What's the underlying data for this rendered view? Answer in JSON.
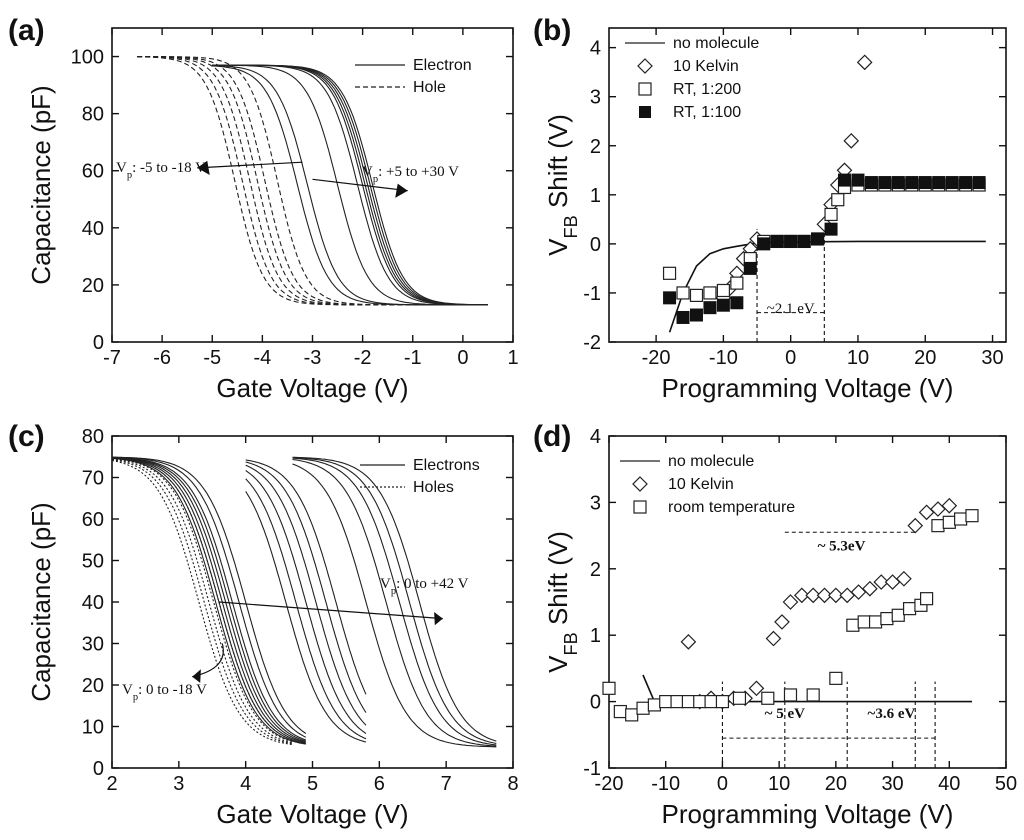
{
  "chart_data": [
    {
      "panel": "(a)",
      "type": "line",
      "xlabel": "Gate Voltage (V)",
      "ylabel": "Capacitance (pF)",
      "xlim": [
        -7,
        1
      ],
      "ylim": [
        0,
        110
      ],
      "xticks": [
        "-7",
        "-6",
        "-5",
        "-4",
        "-3",
        "-2",
        "-1",
        "0",
        "1"
      ],
      "yticks": [
        "0",
        "20",
        "40",
        "60",
        "80",
        "100"
      ],
      "legend": [
        {
          "label": "Electron",
          "style": "solid"
        },
        {
          "label": "Hole",
          "style": "dashed"
        }
      ],
      "annotations": {
        "left": {
          "pre": "V",
          "sub": "p",
          "post": ": -5 to -18 V"
        },
        "right": {
          "pre": "V",
          "sub": "p",
          "post": ": +5 to +30 V"
        }
      },
      "curve_model": {
        "form": "logistic",
        "low": 13,
        "high": 97,
        "end": 0.5
      },
      "series": [
        {
          "name": "Hole",
          "style": "dashed",
          "start": -6.5,
          "high": 100,
          "width": 0.28,
          "midpoints": [
            -4.55,
            -4.4,
            -4.25,
            -4.1,
            -3.95,
            -3.7
          ]
        },
        {
          "name": "Electron",
          "style": "solid",
          "start": -5.0,
          "high": 97,
          "width": 0.3,
          "midpoints": [
            -3.3,
            -3.1,
            -2.5,
            -2.1,
            -2.0,
            -1.95,
            -1.9,
            -1.85,
            -1.8
          ]
        }
      ]
    },
    {
      "panel": "(b)",
      "type": "scatter",
      "xlabel": "Programming Voltage (V)",
      "ylabel_main": "V",
      "ylabel_sub": "FB",
      "ylabel_rest": " Shift (V)",
      "xlim": [
        -27,
        32
      ],
      "ylim": [
        -2,
        4.4
      ],
      "xticks": [
        "-20",
        "-10",
        "0",
        "10",
        "20",
        "30"
      ],
      "yticks": [
        "-2",
        "-1",
        "0",
        "1",
        "2",
        "3",
        "4"
      ],
      "legend": [
        {
          "label": "no molecule",
          "marker": "line"
        },
        {
          "label": "10 Kelvin",
          "marker": "diamond-open"
        },
        {
          "label": "RT, 1:200",
          "marker": "square-open"
        },
        {
          "label": "RT, 1:100",
          "marker": "square-filled"
        }
      ],
      "annotation": "~2.1 eV",
      "markers_x": [
        -5,
        5
      ],
      "no_molecule": [
        [
          -18,
          -1.8
        ],
        [
          -16,
          -1.0
        ],
        [
          -14,
          -0.45
        ],
        [
          -12,
          -0.2
        ],
        [
          -10,
          -0.1
        ],
        [
          -8,
          -0.05
        ],
        [
          -5,
          0.02
        ],
        [
          0,
          0.04
        ],
        [
          10,
          0.05
        ],
        [
          29,
          0.05
        ]
      ],
      "series": [
        {
          "name": "10 Kelvin",
          "marker": "diamond-open",
          "x": [
            -10,
            -9,
            -8,
            -7,
            -6,
            -5,
            5,
            6,
            7,
            8,
            9,
            11
          ],
          "y": [
            -1.1,
            -0.9,
            -0.6,
            -0.3,
            -0.1,
            0.1,
            0.4,
            0.8,
            1.2,
            1.5,
            2.1,
            3.7
          ]
        },
        {
          "name": "RT, 1:200",
          "marker": "square-open",
          "x": [
            -18,
            -16,
            -14,
            -12,
            -10,
            -8,
            -6,
            -4,
            -2,
            0,
            2,
            4,
            6,
            7,
            8,
            10,
            12,
            14,
            16,
            18,
            20,
            22,
            24,
            26,
            28
          ],
          "y": [
            -0.6,
            -1.0,
            -1.05,
            -1.0,
            -0.95,
            -0.8,
            -0.3,
            0.05,
            0.05,
            0.05,
            0.05,
            0.1,
            0.6,
            0.9,
            1.15,
            1.2,
            1.2,
            1.2,
            1.2,
            1.2,
            1.2,
            1.2,
            1.2,
            1.2,
            1.2
          ]
        },
        {
          "name": "RT, 1:100",
          "marker": "square-filled",
          "x": [
            -18,
            -16,
            -14,
            -12,
            -10,
            -8,
            -6,
            -4,
            -2,
            0,
            2,
            4,
            6,
            8,
            10,
            12,
            14,
            16,
            18,
            20,
            22,
            24,
            26,
            28
          ],
          "y": [
            -1.1,
            -1.5,
            -1.45,
            -1.3,
            -1.25,
            -1.2,
            -0.5,
            0.0,
            0.05,
            0.05,
            0.05,
            0.1,
            0.3,
            1.3,
            1.3,
            1.25,
            1.25,
            1.25,
            1.25,
            1.25,
            1.25,
            1.25,
            1.25,
            1.25
          ]
        }
      ]
    },
    {
      "panel": "(c)",
      "type": "line",
      "xlabel": "Gate Voltage (V)",
      "ylabel": "Capacitance (pF)",
      "xlim": [
        2,
        8
      ],
      "ylim": [
        0,
        80
      ],
      "xticks": [
        "2",
        "3",
        "4",
        "5",
        "6",
        "7",
        "8"
      ],
      "yticks": [
        "0",
        "10",
        "20",
        "30",
        "40",
        "50",
        "60",
        "70",
        "80"
      ],
      "legend": [
        {
          "label": "Electrons",
          "style": "solid"
        },
        {
          "label": "Holes",
          "style": "dotted"
        }
      ],
      "annotations": {
        "right": {
          "pre": "V",
          "sub": "p",
          "post": ": 0 to +42 V"
        },
        "left": {
          "pre": "V",
          "sub": "p",
          "post": ": 0 to -18 V"
        }
      },
      "curve_model": {
        "form": "logistic",
        "low": 5,
        "high": 75,
        "width": 0.3
      },
      "series": [
        {
          "name": "Holes",
          "style": "dotted",
          "start": 2.0,
          "end": 4.7,
          "midpoints": [
            3.3,
            3.38,
            3.45,
            3.52,
            3.6
          ]
        },
        {
          "name": "Electrons",
          "style": "solid",
          "start": 2.0,
          "end": 4.9,
          "midpoints": [
            3.55,
            3.6,
            3.65,
            3.7,
            3.75,
            3.8,
            3.9,
            4.0
          ]
        },
        {
          "name": "Electrons",
          "style": "solid",
          "start": 4.0,
          "end": 5.8,
          "midpoints": [
            4.6,
            4.75,
            4.9,
            5.05,
            5.2,
            5.35
          ]
        },
        {
          "name": "Electrons",
          "style": "solid",
          "start": 4.7,
          "end": 7.75,
          "midpoints": [
            5.8,
            6.1,
            6.3,
            6.45,
            6.6
          ]
        }
      ]
    },
    {
      "panel": "(d)",
      "type": "scatter",
      "xlabel": "Programming Voltage (V)",
      "ylabel_main": "V",
      "ylabel_sub": "FB",
      "ylabel_rest": " Shift (V)",
      "xlim": [
        -20,
        50
      ],
      "ylim": [
        -1,
        4
      ],
      "xticks": [
        "-20",
        "-10",
        "0",
        "10",
        "20",
        "30",
        "40",
        "50"
      ],
      "yticks": [
        "-1",
        "0",
        "1",
        "2",
        "3",
        "4"
      ],
      "legend": [
        {
          "label": "no molecule",
          "marker": "line"
        },
        {
          "label": "10 Kelvin",
          "marker": "diamond-open"
        },
        {
          "label": "room temperature",
          "marker": "square-open"
        }
      ],
      "annotations": [
        "~ 5.3eV",
        "~ 5 eV",
        "~3.6 eV"
      ],
      "markers_x": [
        0,
        11,
        22,
        34,
        37.5
      ],
      "no_molecule": [
        [
          -14,
          0.4
        ],
        [
          -12,
          0.0
        ],
        [
          -8,
          0.0
        ],
        [
          0,
          0.0
        ],
        [
          20,
          0.0
        ],
        [
          44,
          0.0
        ]
      ],
      "series": [
        {
          "name": "10 Kelvin",
          "marker": "diamond-open",
          "x": [
            -6,
            -4,
            -2,
            0,
            2,
            4,
            6,
            9,
            10.5,
            12,
            14,
            16,
            18,
            20,
            22,
            24,
            26,
            28,
            30,
            32,
            34,
            36,
            38,
            40
          ],
          "y": [
            0.9,
            0.0,
            0.05,
            0.0,
            0.05,
            0.05,
            0.2,
            0.95,
            1.2,
            1.5,
            1.6,
            1.6,
            1.6,
            1.6,
            1.6,
            1.65,
            1.7,
            1.8,
            1.8,
            1.85,
            2.65,
            2.85,
            2.9,
            2.95
          ]
        },
        {
          "name": "room temperature",
          "marker": "square-open",
          "x": [
            -20,
            -18,
            -16,
            -14,
            -12,
            -10,
            -8,
            -6,
            -4,
            -2,
            0,
            3,
            8,
            12,
            16,
            20,
            23,
            25,
            27,
            29,
            31,
            33,
            35,
            36,
            38,
            40,
            42,
            44
          ],
          "y": [
            0.2,
            -0.15,
            -0.2,
            -0.1,
            -0.05,
            0.0,
            0.0,
            0.0,
            0.0,
            0.0,
            0.0,
            0.05,
            0.05,
            0.1,
            0.1,
            0.35,
            1.15,
            1.2,
            1.2,
            1.25,
            1.3,
            1.4,
            1.45,
            1.55,
            2.65,
            2.7,
            2.75,
            2.8
          ]
        }
      ]
    }
  ]
}
